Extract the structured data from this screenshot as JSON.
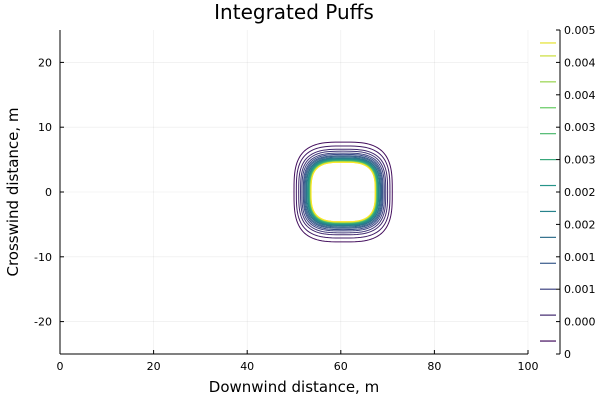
{
  "chart_data": {
    "type": "contour",
    "title": "Integrated Puffs",
    "xlabel": "Downwind distance, m",
    "ylabel": "Crosswind distance, m",
    "xlim": [
      0,
      100
    ],
    "ylim": [
      -25,
      25
    ],
    "xticks": [
      0,
      20,
      40,
      60,
      80,
      100
    ],
    "yticks": [
      -20,
      -10,
      0,
      10,
      20
    ],
    "grid": true,
    "colormap": "viridis",
    "contour_center": [
      60.5,
      0
    ],
    "contour_levels": [
      0.0002,
      0.0004,
      0.0006,
      0.0008,
      0.001,
      0.0012,
      0.0014,
      0.0016,
      0.0018,
      0.002,
      0.0022,
      0.0024,
      0.0026,
      0.0028,
      0.003,
      0.0032,
      0.0034,
      0.0036,
      0.0038,
      0.004,
      0.0042,
      0.0044,
      0.0046,
      0.0048,
      0.005
    ],
    "contour_half_widths_x": [
      10.5,
      10.0,
      9.5,
      9.1,
      8.8,
      8.5,
      8.3,
      8.1,
      7.9,
      7.8,
      7.6,
      7.5,
      7.4,
      7.3,
      7.2,
      7.15,
      7.1,
      7.05,
      7.0,
      6.98,
      6.95,
      6.92,
      6.9,
      6.88,
      6.85
    ],
    "contour_half_widths_y": [
      7.7,
      7.1,
      6.6,
      6.3,
      6.0,
      5.8,
      5.6,
      5.45,
      5.3,
      5.2,
      5.1,
      5.0,
      4.95,
      4.9,
      4.85,
      4.8,
      4.75,
      4.72,
      4.7,
      4.68,
      4.66,
      4.64,
      4.62,
      4.6,
      4.58
    ],
    "colorbar": {
      "range": [
        0,
        0.005
      ],
      "tick_values": [
        0,
        0.0005,
        0.001,
        0.0015,
        0.002,
        0.0025,
        0.003,
        0.0035,
        0.004,
        0.0045,
        0.005
      ],
      "tick_labels": [
        "0",
        "0.000",
        "0.001",
        "0.001",
        "0.002",
        "0.002",
        "0.003",
        "0.003",
        "0.004",
        "0.004",
        "0.005"
      ],
      "level_values": [
        0.0002,
        0.0006,
        0.001,
        0.0014,
        0.0018,
        0.0022,
        0.0026,
        0.003,
        0.0034,
        0.0038,
        0.0042,
        0.0046,
        0.0048
      ]
    }
  }
}
